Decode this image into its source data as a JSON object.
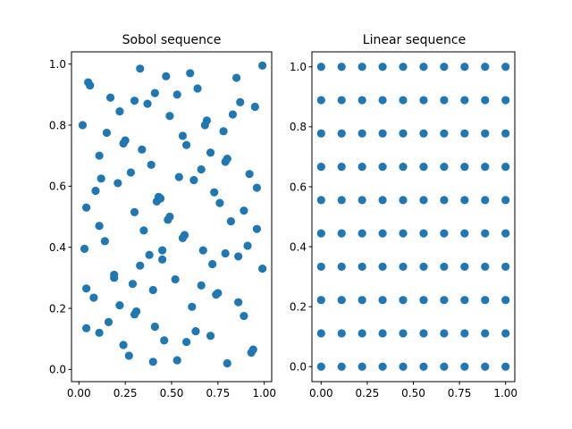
{
  "chart_data": [
    {
      "type": "scatter",
      "title": "Sobol sequence",
      "xlabel": "",
      "ylabel": "",
      "xlim": [
        -0.04,
        1.04
      ],
      "ylim": [
        -0.04,
        1.04
      ],
      "xticks": [
        "0.00",
        "0.25",
        "0.50",
        "0.75",
        "1.00"
      ],
      "yticks": [
        "0.0",
        "0.2",
        "0.4",
        "0.6",
        "0.8",
        "1.0"
      ],
      "color": "#1f77b4",
      "grid": false,
      "points": [
        [
          0.06,
          0.93
        ],
        [
          0.05,
          0.94
        ],
        [
          0.33,
          0.985
        ],
        [
          0.47,
          0.96
        ],
        [
          0.6,
          0.97
        ],
        [
          0.99,
          0.995
        ],
        [
          0.85,
          0.955
        ],
        [
          0.64,
          0.92
        ],
        [
          0.41,
          0.905
        ],
        [
          0.17,
          0.89
        ],
        [
          0.3,
          0.88
        ],
        [
          0.37,
          0.87
        ],
        [
          0.53,
          0.9
        ],
        [
          0.87,
          0.875
        ],
        [
          0.95,
          0.86
        ],
        [
          0.22,
          0.845
        ],
        [
          0.49,
          0.83
        ],
        [
          0.83,
          0.835
        ],
        [
          0.02,
          0.8
        ],
        [
          0.69,
          0.815
        ],
        [
          0.68,
          0.8
        ],
        [
          0.78,
          0.78
        ],
        [
          0.15,
          0.775
        ],
        [
          0.56,
          0.765
        ],
        [
          0.25,
          0.75
        ],
        [
          0.24,
          0.74
        ],
        [
          0.58,
          0.735
        ],
        [
          0.34,
          0.72
        ],
        [
          0.71,
          0.71
        ],
        [
          0.11,
          0.7
        ],
        [
          0.8,
          0.69
        ],
        [
          0.79,
          0.68
        ],
        [
          0.39,
          0.67
        ],
        [
          0.66,
          0.655
        ],
        [
          0.28,
          0.645
        ],
        [
          0.92,
          0.64
        ],
        [
          0.54,
          0.63
        ],
        [
          0.12,
          0.625
        ],
        [
          0.62,
          0.62
        ],
        [
          0.21,
          0.61
        ],
        [
          0.96,
          0.595
        ],
        [
          0.09,
          0.585
        ],
        [
          0.73,
          0.58
        ],
        [
          0.43,
          0.565
        ],
        [
          0.44,
          0.56
        ],
        [
          0.42,
          0.55
        ],
        [
          0.76,
          0.545
        ],
        [
          0.04,
          0.53
        ],
        [
          0.3,
          0.515
        ],
        [
          0.89,
          0.52
        ],
        [
          0.49,
          0.5
        ],
        [
          0.48,
          0.49
        ],
        [
          0.82,
          0.485
        ],
        [
          0.11,
          0.47
        ],
        [
          0.35,
          0.455
        ],
        [
          0.96,
          0.46
        ],
        [
          0.57,
          0.44
        ],
        [
          0.56,
          0.43
        ],
        [
          0.14,
          0.42
        ],
        [
          0.91,
          0.405
        ],
        [
          0.03,
          0.395
        ],
        [
          0.67,
          0.39
        ],
        [
          0.45,
          0.39
        ],
        [
          0.79,
          0.38
        ],
        [
          0.38,
          0.375
        ],
        [
          0.86,
          0.37
        ],
        [
          0.45,
          0.36
        ],
        [
          0.72,
          0.345
        ],
        [
          0.33,
          0.34
        ],
        [
          0.99,
          0.33
        ],
        [
          0.19,
          0.31
        ],
        [
          0.19,
          0.3
        ],
        [
          0.52,
          0.295
        ],
        [
          0.29,
          0.28
        ],
        [
          0.66,
          0.275
        ],
        [
          0.04,
          0.265
        ],
        [
          0.4,
          0.26
        ],
        [
          0.75,
          0.25
        ],
        [
          0.74,
          0.245
        ],
        [
          0.08,
          0.235
        ],
        [
          0.86,
          0.22
        ],
        [
          0.22,
          0.21
        ],
        [
          0.61,
          0.205
        ],
        [
          0.31,
          0.19
        ],
        [
          0.3,
          0.18
        ],
        [
          0.89,
          0.175
        ],
        [
          0.16,
          0.155
        ],
        [
          0.41,
          0.14
        ],
        [
          0.04,
          0.135
        ],
        [
          0.63,
          0.125
        ],
        [
          0.11,
          0.12
        ],
        [
          0.71,
          0.11
        ],
        [
          0.46,
          0.095
        ],
        [
          0.58,
          0.09
        ],
        [
          0.24,
          0.08
        ],
        [
          0.94,
          0.065
        ],
        [
          0.93,
          0.055
        ],
        [
          0.27,
          0.045
        ],
        [
          0.53,
          0.03
        ],
        [
          0.4,
          0.025
        ],
        [
          0.8,
          0.02
        ]
      ]
    },
    {
      "type": "scatter",
      "title": "Linear sequence",
      "xlabel": "",
      "ylabel": "",
      "xlim": [
        -0.05,
        1.05
      ],
      "ylim": [
        -0.05,
        1.05
      ],
      "xticks": [
        "0.00",
        "0.25",
        "0.50",
        "0.75",
        "1.00"
      ],
      "yticks": [
        "0.0",
        "0.2",
        "0.4",
        "0.6",
        "0.8",
        "1.0"
      ],
      "color": "#1f77b4",
      "grid": false,
      "grid_values": [
        0,
        0.1111,
        0.2222,
        0.3333,
        0.4444,
        0.5556,
        0.6667,
        0.7778,
        0.8889,
        1
      ]
    }
  ]
}
